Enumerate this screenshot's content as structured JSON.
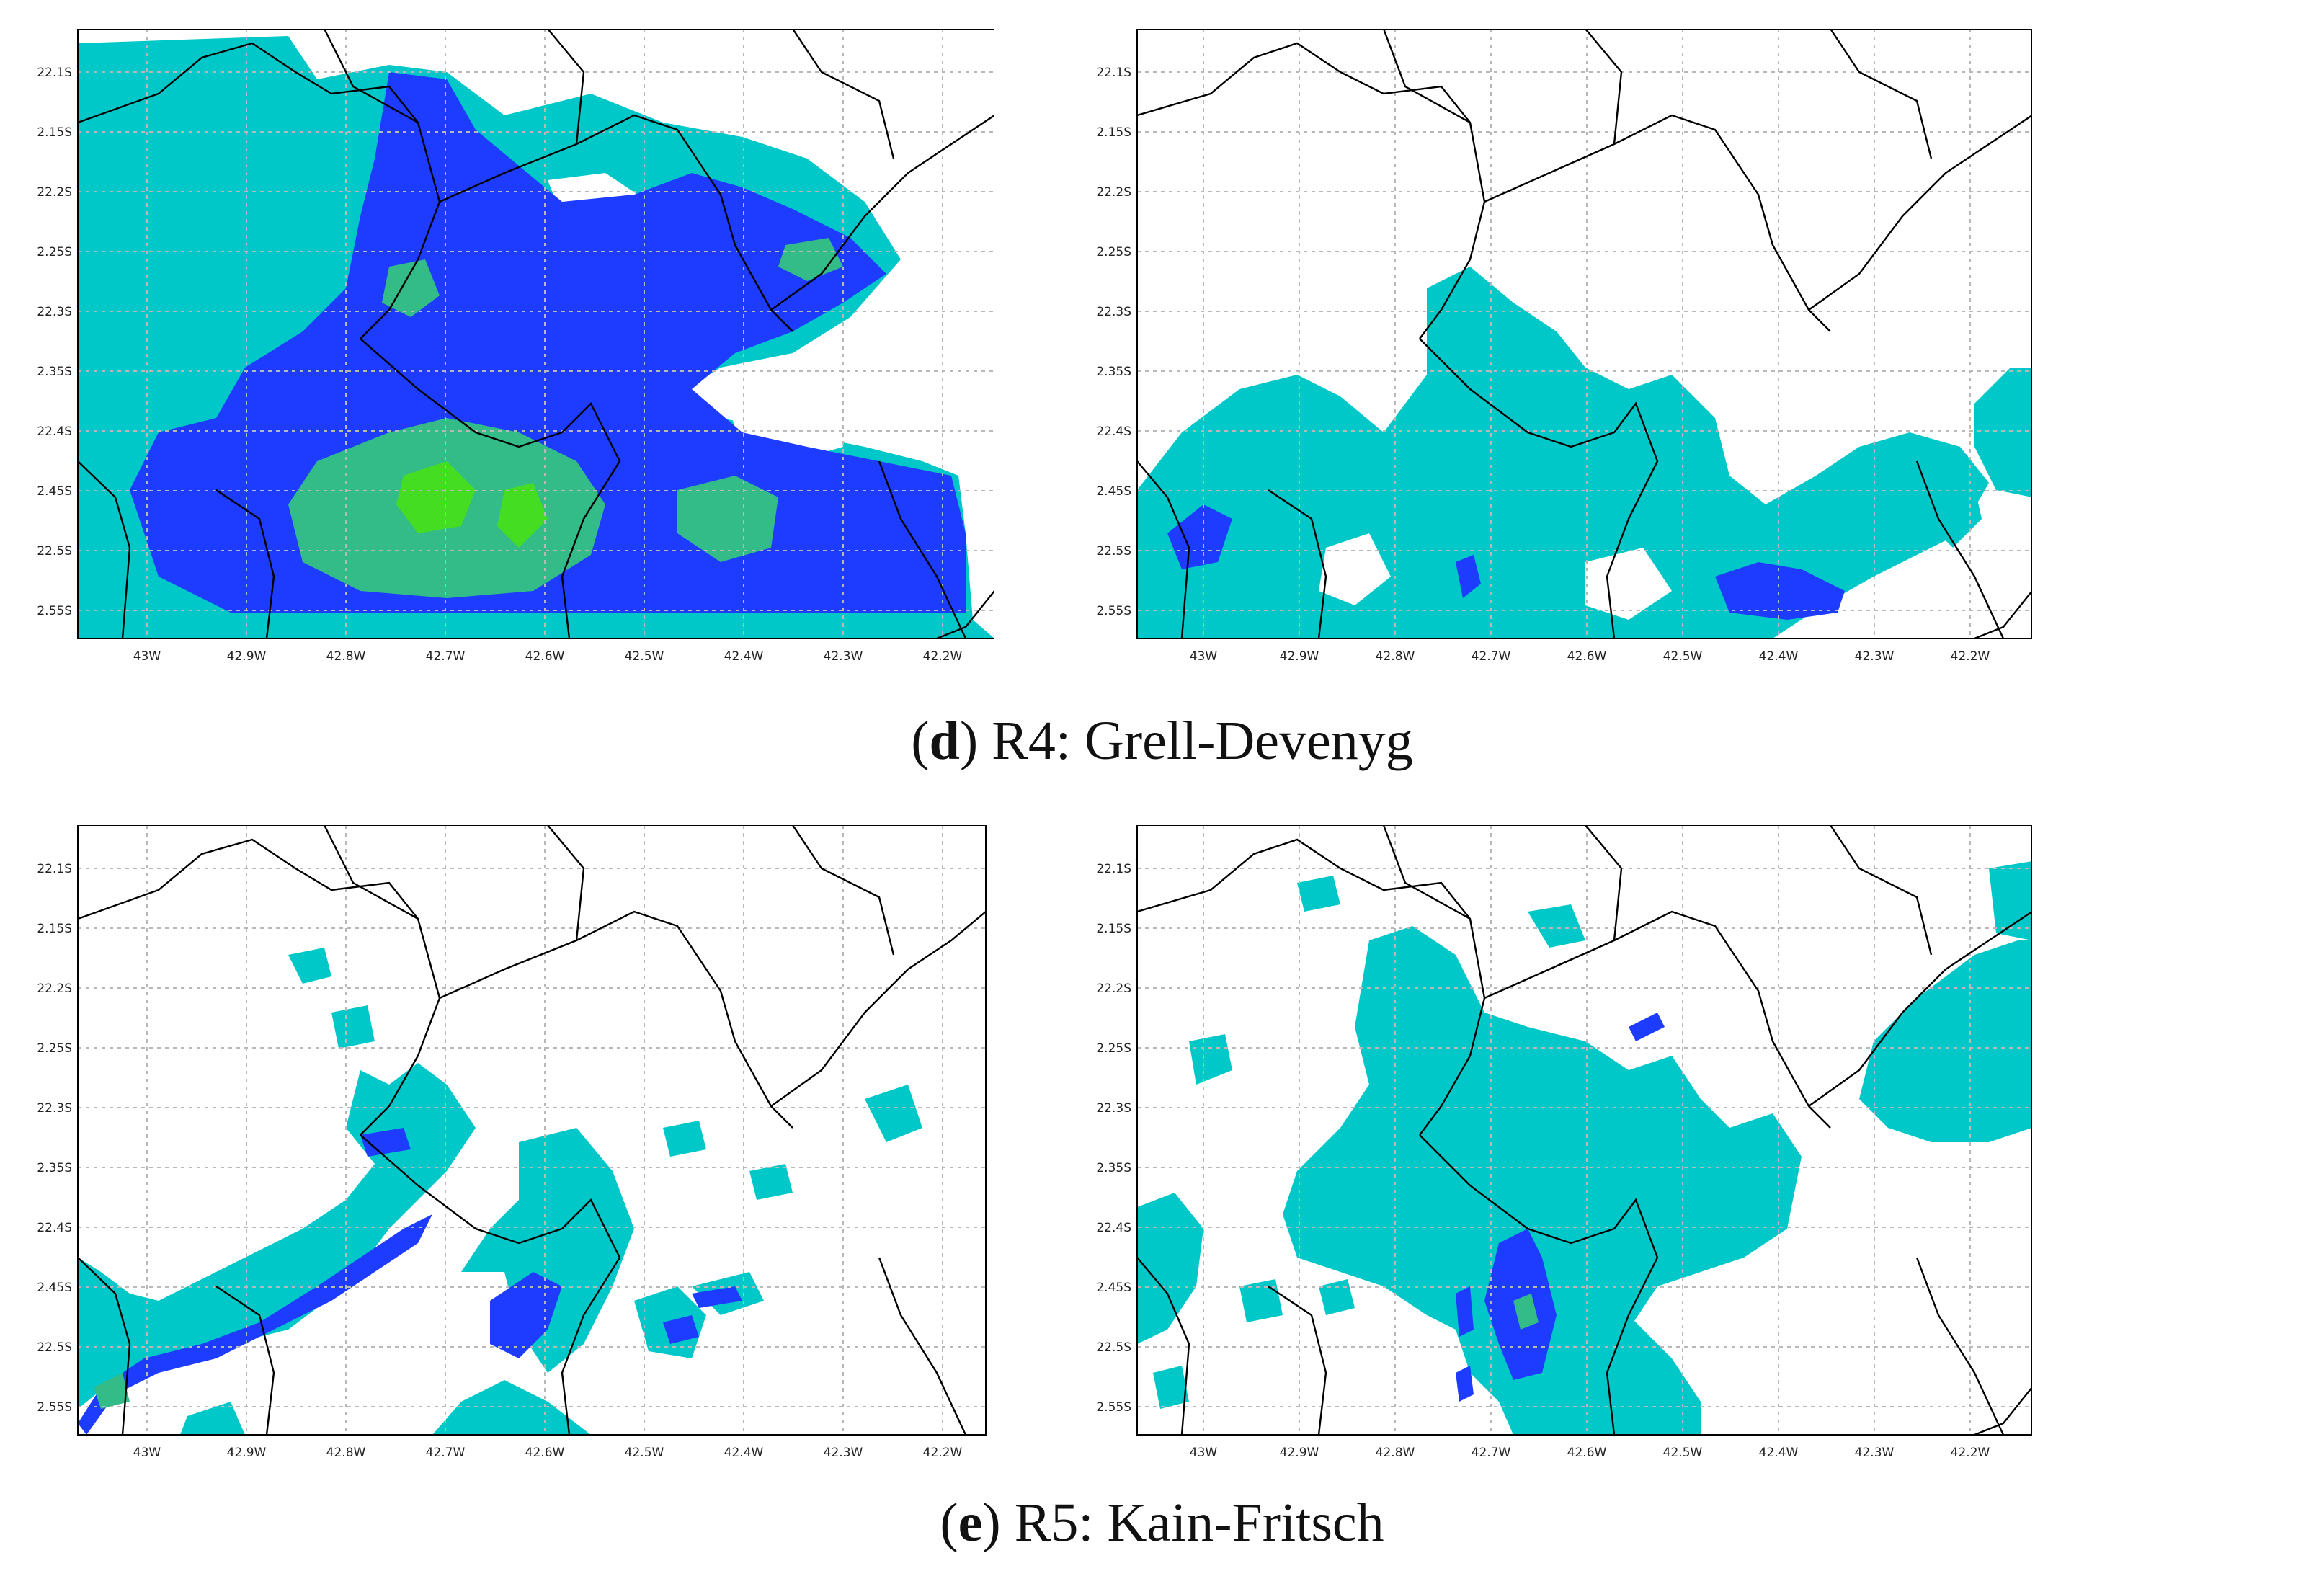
{
  "figure": {
    "captions": [
      {
        "open": "(",
        "letter": "d",
        "close": ") ",
        "text": "R4: Grell-Devenyg"
      },
      {
        "open": "(",
        "letter": "e",
        "close": ") ",
        "text": "R5: Kain-Fritsch"
      }
    ]
  },
  "axes": {
    "lat_labels_left": [
      "22.1S",
      "2.15S",
      "22.2S",
      "2.25S",
      "22.3S",
      "2.35S",
      "22.4S",
      "2.45S",
      "22.5S",
      "2.55S"
    ],
    "lat_labels_right": [
      "22.1S",
      "2.15S",
      "22.2S",
      "2.25S",
      "22.3S",
      "2.35S",
      "22.4S",
      "2.45S",
      "22.5S",
      "2.55S"
    ],
    "lon_labels": [
      "43W",
      "42.9W",
      "42.8W",
      "42.7W",
      "42.6W",
      "42.5W",
      "42.4W",
      "42.3W",
      "42.2W"
    ]
  },
  "colors": {
    "level1": "#00c8c8",
    "level2": "#1e3cff",
    "level3": "#33bb88",
    "level4": "#44dd22",
    "border": "#000000",
    "grid": "#b8b8b8"
  }
}
